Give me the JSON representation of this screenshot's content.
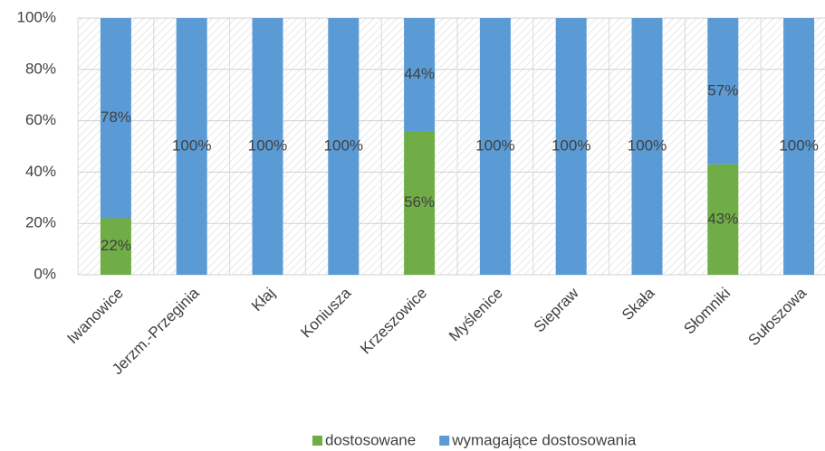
{
  "chart_data": {
    "type": "stacked_bar",
    "categories": [
      "Iwanowice",
      "Jerzm.-Przeginia",
      "Kłaj",
      "Koniusza",
      "Krzeszowice",
      "Myślenice",
      "Siepraw",
      "Skała",
      "Słomniki",
      "Sułoszowa"
    ],
    "series": [
      {
        "name": "dostosowane",
        "color": "#70ad47",
        "values": [
          22,
          0,
          0,
          0,
          56,
          0,
          0,
          0,
          43,
          0
        ],
        "value_labels": [
          "22%",
          null,
          null,
          null,
          "56%",
          null,
          null,
          null,
          "43%",
          null
        ]
      },
      {
        "name": "wymagające dostosowania",
        "color": "#5b9bd5",
        "values": [
          78,
          100,
          100,
          100,
          44,
          100,
          100,
          100,
          57,
          100
        ],
        "value_labels": [
          "78%",
          "100%",
          "100%",
          "100%",
          "44%",
          "100%",
          "100%",
          "100%",
          "57%",
          "100%"
        ]
      }
    ],
    "ylim": [
      0,
      100
    ],
    "yticks": [
      {
        "value": 0,
        "label": "0%"
      },
      {
        "value": 20,
        "label": "20%"
      },
      {
        "value": 40,
        "label": "40%"
      },
      {
        "value": 60,
        "label": "60%"
      },
      {
        "value": 80,
        "label": "80%"
      },
      {
        "value": 100,
        "label": "100%"
      }
    ],
    "grid": true,
    "legend": "bottom"
  }
}
